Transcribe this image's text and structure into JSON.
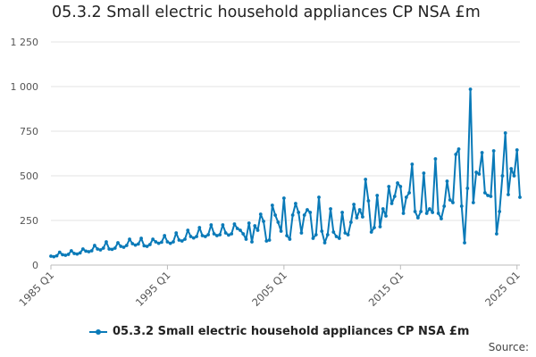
{
  "title": "05.3.2 Small electric household appliances CP NSA £m",
  "legend_label": "05.3.2 Small electric household appliances CP NSA £m",
  "source_label": "Source:",
  "colors": {
    "series": "#0a7ab8",
    "grid": "#e3e3e3",
    "axis": "#bbbbbb"
  },
  "chart_data": {
    "type": "line",
    "title": "05.3.2 Small electric household appliances CP NSA £m",
    "xlabel": "",
    "ylabel": "",
    "ylim": [
      0,
      1250
    ],
    "yticks": [
      0,
      250,
      500,
      750,
      1000,
      1250
    ],
    "ytick_labels": [
      "0",
      "250",
      "500",
      "750",
      "1 000",
      "1 250"
    ],
    "xticks": [
      {
        "label": "1985 Q1",
        "index": 0
      },
      {
        "label": "1995 Q1",
        "index": 40
      },
      {
        "label": "2005 Q1",
        "index": 80
      },
      {
        "label": "2015 Q1",
        "index": 120
      },
      {
        "label": "2025 Q1",
        "index": 160
      }
    ],
    "series": [
      {
        "name": "05.3.2 Small electric household appliances CP NSA £m",
        "start": "1985 Q1",
        "frequency": "quarterly",
        "values": [
          50,
          47,
          52,
          72,
          58,
          55,
          60,
          80,
          65,
          62,
          68,
          90,
          78,
          75,
          80,
          110,
          90,
          85,
          95,
          130,
          90,
          88,
          95,
          125,
          105,
          100,
          110,
          145,
          120,
          112,
          118,
          150,
          108,
          105,
          115,
          145,
          130,
          122,
          128,
          165,
          130,
          122,
          130,
          180,
          140,
          135,
          145,
          195,
          160,
          152,
          160,
          210,
          165,
          160,
          170,
          225,
          175,
          165,
          170,
          225,
          180,
          168,
          175,
          230,
          205,
          195,
          175,
          145,
          235,
          130,
          220,
          195,
          285,
          245,
          135,
          140,
          335,
          280,
          240,
          190,
          375,
          165,
          145,
          280,
          345,
          295,
          180,
          280,
          310,
          295,
          150,
          170,
          380,
          190,
          125,
          170,
          315,
          185,
          160,
          150,
          295,
          180,
          170,
          240,
          340,
          265,
          310,
          270,
          480,
          360,
          185,
          210,
          390,
          215,
          315,
          275,
          440,
          345,
          385,
          460,
          440,
          290,
          380,
          405,
          565,
          300,
          265,
          300,
          515,
          290,
          315,
          295,
          595,
          290,
          260,
          330,
          470,
          365,
          350,
          620,
          650,
          330,
          125,
          430,
          985,
          350,
          520,
          510,
          630,
          405,
          390,
          385,
          640,
          175,
          300,
          500,
          740,
          395,
          540,
          500,
          645,
          380
        ]
      }
    ]
  }
}
